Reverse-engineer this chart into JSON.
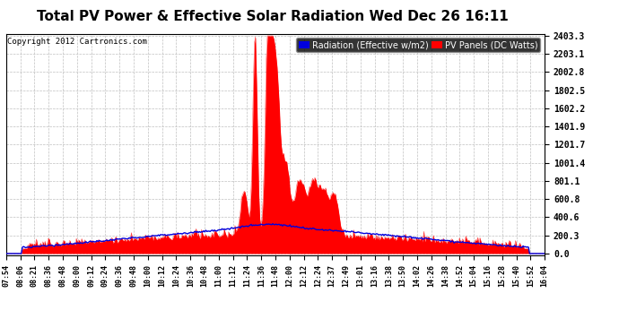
{
  "title": "Total PV Power & Effective Solar Radiation Wed Dec 26 16:11",
  "copyright_text": "Copyright 2012 Cartronics.com",
  "legend_radiation": "Radiation (Effective w/m2)",
  "legend_pv": "PV Panels (DC Watts)",
  "yticks": [
    0.0,
    200.3,
    400.6,
    600.8,
    801.1,
    1001.4,
    1201.7,
    1401.9,
    1602.2,
    1802.5,
    2002.8,
    2203.1,
    2403.3
  ],
  "ymax": 2403.3,
  "bg_color": "#ffffff",
  "plot_bg_color": "#ffffff",
  "grid_color": "#c0c0c0",
  "title_color": "#000000",
  "radiation_color": "#0000dd",
  "pv_color": "#ff0000",
  "title_fontsize": 11,
  "n_points": 500,
  "xtick_labels": [
    "07:54",
    "08:06",
    "08:21",
    "08:36",
    "08:48",
    "09:00",
    "09:12",
    "09:24",
    "09:36",
    "09:48",
    "10:00",
    "10:12",
    "10:24",
    "10:36",
    "10:48",
    "11:00",
    "11:12",
    "11:24",
    "11:36",
    "11:48",
    "12:00",
    "12:12",
    "12:24",
    "12:37",
    "12:49",
    "13:01",
    "13:16",
    "13:38",
    "13:50",
    "14:02",
    "14:26",
    "14:38",
    "14:52",
    "15:04",
    "15:16",
    "15:28",
    "15:40",
    "15:52",
    "16:04"
  ]
}
